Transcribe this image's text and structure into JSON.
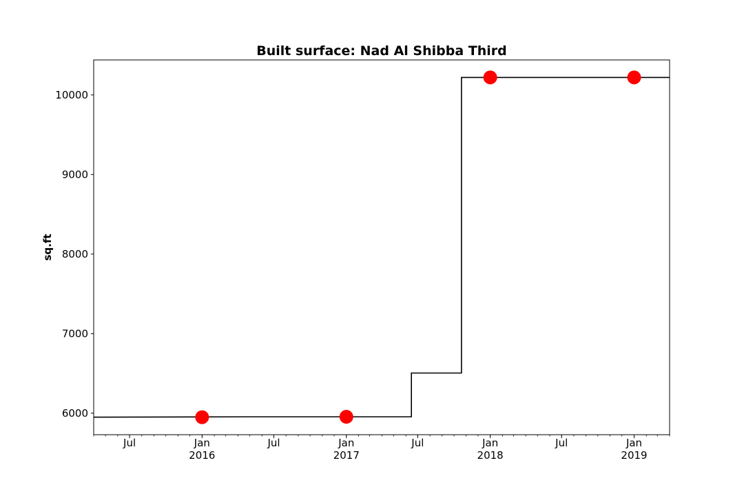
{
  "chart_data": {
    "type": "line",
    "title": "Built surface: Nad Al Shibba Third",
    "xlabel": "",
    "ylabel": "sq.ft",
    "xlim": [
      "2015-04-01",
      "2019-04-01"
    ],
    "ylim": [
      5730,
      10440
    ],
    "grid": false,
    "legend": null,
    "step_line": {
      "color": "#000000",
      "x": [
        "2015-04-01",
        "2016-05-01",
        "2017-06-15",
        "2017-06-15",
        "2017-10-20",
        "2017-10-20",
        "2019-04-01"
      ],
      "y": [
        5950,
        5955,
        5955,
        6505,
        6505,
        10220,
        10220
      ]
    },
    "points": {
      "color": "#ff0000",
      "x": [
        "2016-01-01",
        "2017-01-01",
        "2018-01-01",
        "2019-01-01"
      ],
      "y": [
        5950,
        5955,
        10220,
        10220
      ]
    },
    "y_ticks": [
      6000,
      7000,
      8000,
      9000,
      10000
    ],
    "x_major_ticks": [
      {
        "date": "2015-07-01",
        "label": "Jul",
        "year": ""
      },
      {
        "date": "2016-01-01",
        "label": "Jan",
        "year": "2016"
      },
      {
        "date": "2016-07-01",
        "label": "Jul",
        "year": ""
      },
      {
        "date": "2017-01-01",
        "label": "Jan",
        "year": "2017"
      },
      {
        "date": "2017-07-01",
        "label": "Jul",
        "year": ""
      },
      {
        "date": "2018-01-01",
        "label": "Jan",
        "year": "2018"
      },
      {
        "date": "2018-07-01",
        "label": "Jul",
        "year": ""
      },
      {
        "date": "2019-01-01",
        "label": "Jan",
        "year": "2019"
      }
    ]
  }
}
